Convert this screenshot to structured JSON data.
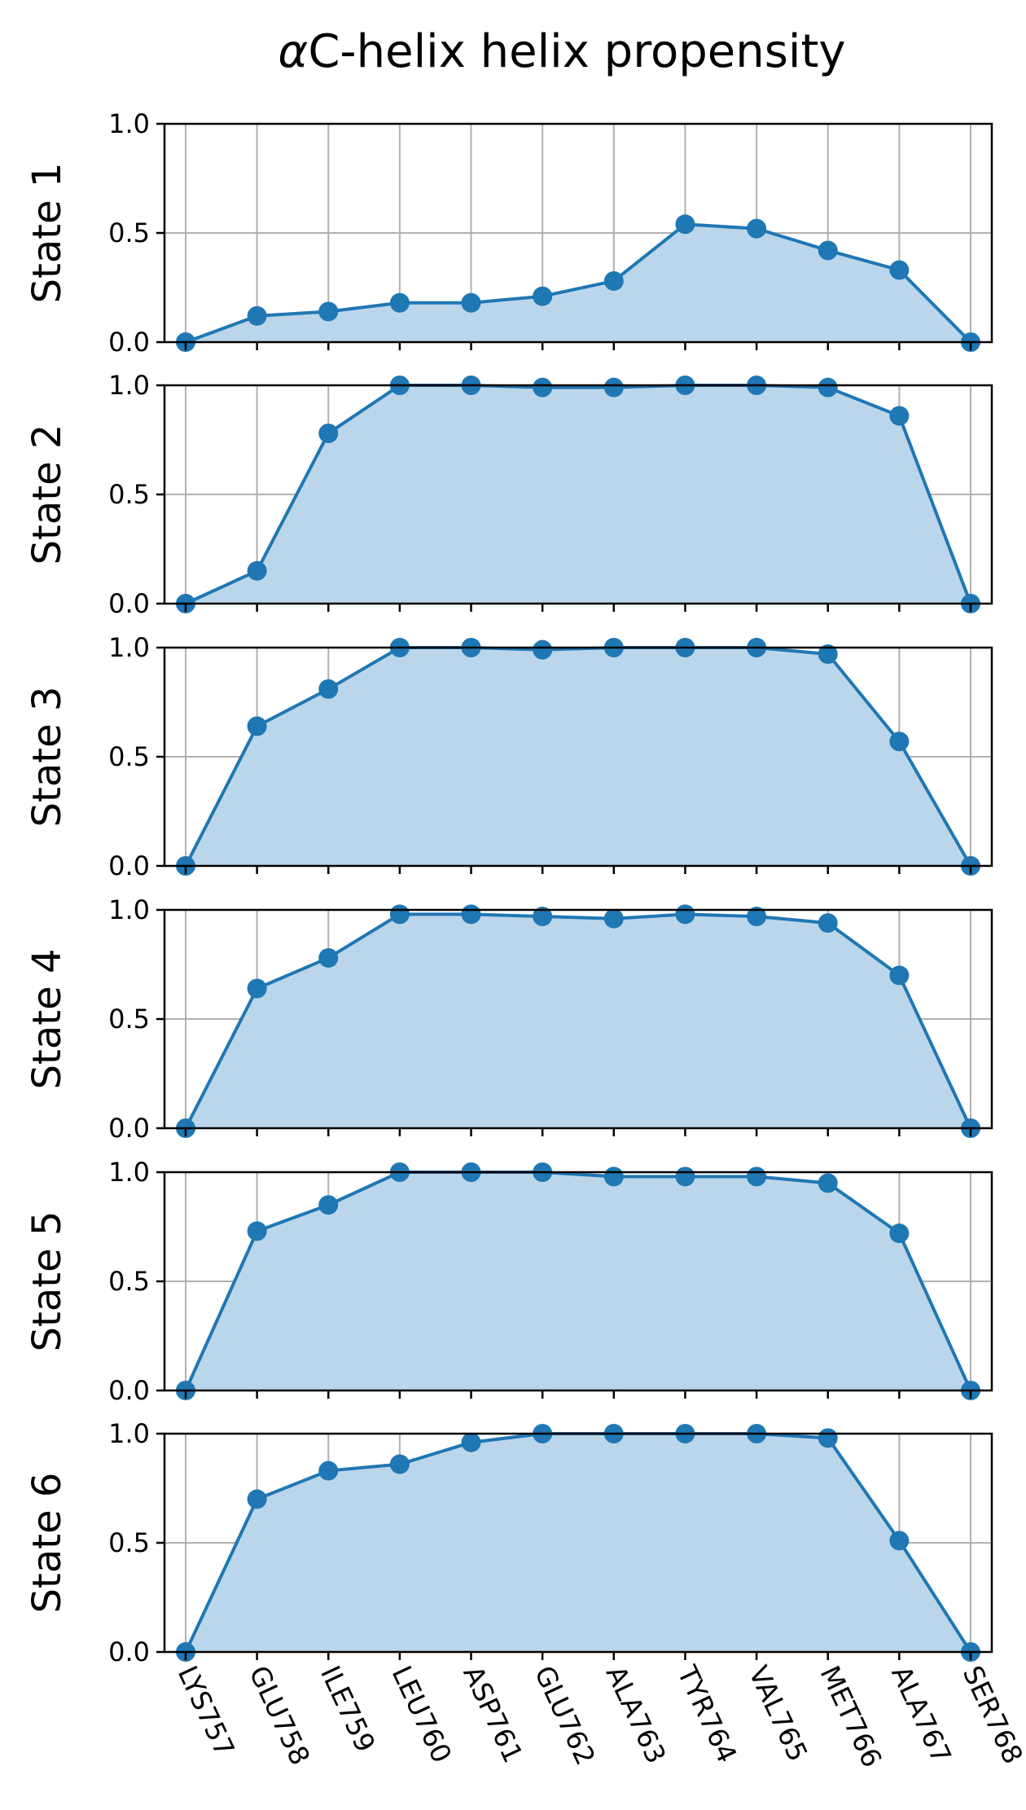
{
  "chart_data": {
    "type": "area",
    "title_prefix": "α",
    "title_rest": "C-helix helix propensity",
    "categories": [
      "LYS757",
      "GLU758",
      "ILE759",
      "LEU760",
      "ASP761",
      "GLU762",
      "ALA763",
      "TYR764",
      "VAL765",
      "MET766",
      "ALA767",
      "SER768"
    ],
    "ylim": [
      0,
      1
    ],
    "yticks": [
      "0.0",
      "0.5",
      "1.0"
    ],
    "grid": true,
    "line_color": "#1f77b4",
    "fill_color": "#bbd6ea",
    "grid_color": "#b0b0b0",
    "panels": [
      {
        "name": "State 1",
        "values": [
          0.0,
          0.12,
          0.14,
          0.18,
          0.18,
          0.21,
          0.28,
          0.54,
          0.52,
          0.42,
          0.33,
          0.0
        ]
      },
      {
        "name": "State 2",
        "values": [
          0.0,
          0.15,
          0.78,
          1.0,
          1.0,
          0.99,
          0.99,
          1.0,
          1.0,
          0.99,
          0.86,
          0.0
        ]
      },
      {
        "name": "State 3",
        "values": [
          0.0,
          0.64,
          0.81,
          1.0,
          1.0,
          0.99,
          1.0,
          1.0,
          1.0,
          0.97,
          0.57,
          0.0
        ]
      },
      {
        "name": "State 4",
        "values": [
          0.0,
          0.64,
          0.78,
          0.98,
          0.98,
          0.97,
          0.96,
          0.98,
          0.97,
          0.94,
          0.7,
          0.0
        ]
      },
      {
        "name": "State 5",
        "values": [
          0.0,
          0.73,
          0.85,
          1.0,
          1.0,
          1.0,
          0.98,
          0.98,
          0.98,
          0.95,
          0.72,
          0.0
        ]
      },
      {
        "name": "State 6",
        "values": [
          0.0,
          0.7,
          0.83,
          0.86,
          0.96,
          1.0,
          1.0,
          1.0,
          1.0,
          0.98,
          0.51,
          0.0
        ]
      }
    ]
  }
}
